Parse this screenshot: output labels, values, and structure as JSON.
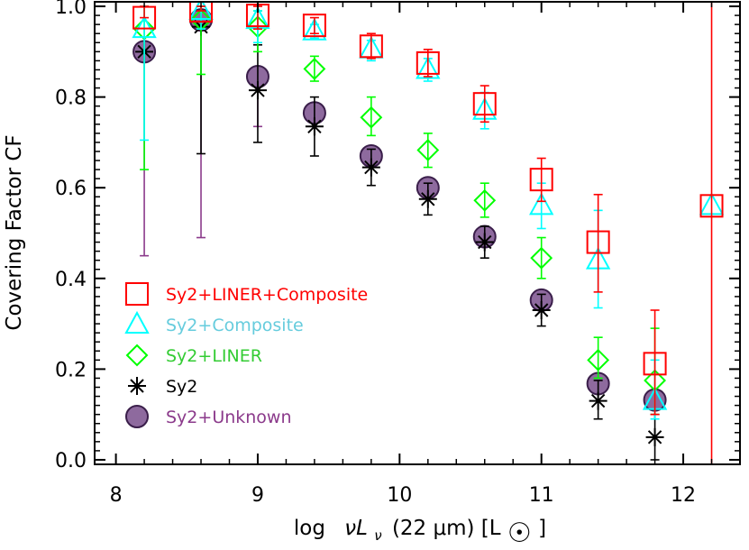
{
  "chart_data": {
    "type": "scatter",
    "title": "",
    "xlabel_parts": [
      "log",
      "νL",
      "ν",
      "(22 μm) [L",
      "☉",
      "]"
    ],
    "ylabel": "Covering Factor CF",
    "xlim": [
      7.85,
      12.4
    ],
    "ylim": [
      -0.01,
      1.01
    ],
    "x_ticks": [
      8,
      9,
      10,
      11,
      12
    ],
    "y_ticks": [
      0.0,
      0.2,
      0.4,
      0.6,
      0.8,
      1.0
    ],
    "y_tick_labels": [
      "0.0",
      "0.2",
      "0.4",
      "0.6",
      "0.8",
      "1.0"
    ],
    "grid": false,
    "legend_position": "lower-left",
    "series": [
      {
        "name": "Sy2+LINER+Composite",
        "marker": "square",
        "color": "#ff0000",
        "x": [
          8.2,
          8.6,
          9.0,
          9.4,
          9.8,
          10.2,
          10.6,
          11.0,
          11.4,
          11.8,
          12.2
        ],
        "y": [
          0.975,
          0.99,
          0.98,
          0.958,
          0.912,
          0.875,
          0.785,
          0.618,
          0.48,
          0.212,
          0.56
        ],
        "err": [
          [
            0.975,
            1.0
          ],
          [
            0.99,
            1.0
          ],
          [
            0.95,
            1.0
          ],
          [
            0.94,
            0.975
          ],
          [
            0.885,
            0.94
          ],
          [
            0.845,
            0.905
          ],
          [
            0.745,
            0.825
          ],
          [
            0.57,
            0.665
          ],
          [
            0.37,
            0.585
          ],
          [
            0.1,
            0.33
          ],
          [
            -0.01,
            1.01
          ]
        ]
      },
      {
        "name": "Sy2+Composite",
        "marker": "triangle",
        "color": "#00ffff",
        "x": [
          8.2,
          8.6,
          9.0,
          9.4,
          9.8,
          10.2,
          10.6,
          11.0,
          11.4,
          11.8,
          12.2
        ],
        "y": [
          0.95,
          0.99,
          0.97,
          0.945,
          0.905,
          0.86,
          0.77,
          0.56,
          0.44,
          0.13,
          0.56
        ],
        "err": [
          [
            0.705,
            1.0
          ],
          [
            0.95,
            1.0
          ],
          [
            0.92,
            0.99
          ],
          [
            0.93,
            0.96
          ],
          [
            0.88,
            0.925
          ],
          [
            0.835,
            0.885
          ],
          [
            0.73,
            0.81
          ],
          [
            0.51,
            0.61
          ],
          [
            0.335,
            0.55
          ],
          [
            0.09,
            0.22
          ],
          [
            0.56,
            0.56
          ]
        ]
      },
      {
        "name": "Sy2+LINER",
        "marker": "diamond",
        "color": "#00ff00",
        "x": [
          8.2,
          8.6,
          9.0,
          9.4,
          9.8,
          10.2,
          10.6,
          11.0,
          11.4,
          11.8
        ],
        "y": [
          0.95,
          0.97,
          0.955,
          0.862,
          0.755,
          0.683,
          0.572,
          0.445,
          0.22,
          0.175
        ],
        "err": [
          [
            0.64,
            1.0
          ],
          [
            0.85,
            1.0
          ],
          [
            0.9,
            0.99
          ],
          [
            0.835,
            0.89
          ],
          [
            0.715,
            0.8
          ],
          [
            0.645,
            0.72
          ],
          [
            0.535,
            0.61
          ],
          [
            0.4,
            0.49
          ],
          [
            0.18,
            0.27
          ],
          [
            0.1,
            0.29
          ]
        ]
      },
      {
        "name": "Sy2",
        "marker": "asterisk",
        "color": "#000000",
        "x": [
          8.2,
          8.6,
          9.0,
          9.4,
          9.8,
          10.2,
          10.6,
          11.0,
          11.4,
          11.8
        ],
        "y": [
          0.9,
          0.955,
          0.815,
          0.735,
          0.645,
          0.575,
          0.48,
          0.33,
          0.13,
          0.05
        ],
        "err": [
          [
            0.9,
            0.9
          ],
          [
            0.675,
            1.0
          ],
          [
            0.7,
            0.915
          ],
          [
            0.67,
            0.8
          ],
          [
            0.605,
            0.685
          ],
          [
            0.54,
            0.61
          ],
          [
            0.445,
            0.515
          ],
          [
            0.295,
            0.365
          ],
          [
            0.09,
            0.175
          ],
          [
            0.0,
            0.1
          ]
        ]
      },
      {
        "name": "Sy2+Unknown",
        "marker": "circle",
        "color": "#8b3a8b",
        "fill": "#8e6a9e",
        "x": [
          8.2,
          8.6,
          9.0,
          9.4,
          9.8,
          10.2,
          10.6,
          11.0,
          11.4,
          11.8
        ],
        "y": [
          0.9,
          0.97,
          0.845,
          0.765,
          0.67,
          0.6,
          0.492,
          0.352,
          0.168,
          0.132
        ],
        "err": [
          [
            0.45,
            0.9
          ],
          [
            0.49,
            0.97
          ],
          [
            0.735,
            0.845
          ],
          [
            0.765,
            0.765
          ],
          [
            0.67,
            0.67
          ],
          [
            0.6,
            0.6
          ],
          [
            0.492,
            0.492
          ],
          [
            0.352,
            0.352
          ],
          [
            0.168,
            0.168
          ],
          [
            0.132,
            0.132
          ]
        ]
      }
    ]
  }
}
